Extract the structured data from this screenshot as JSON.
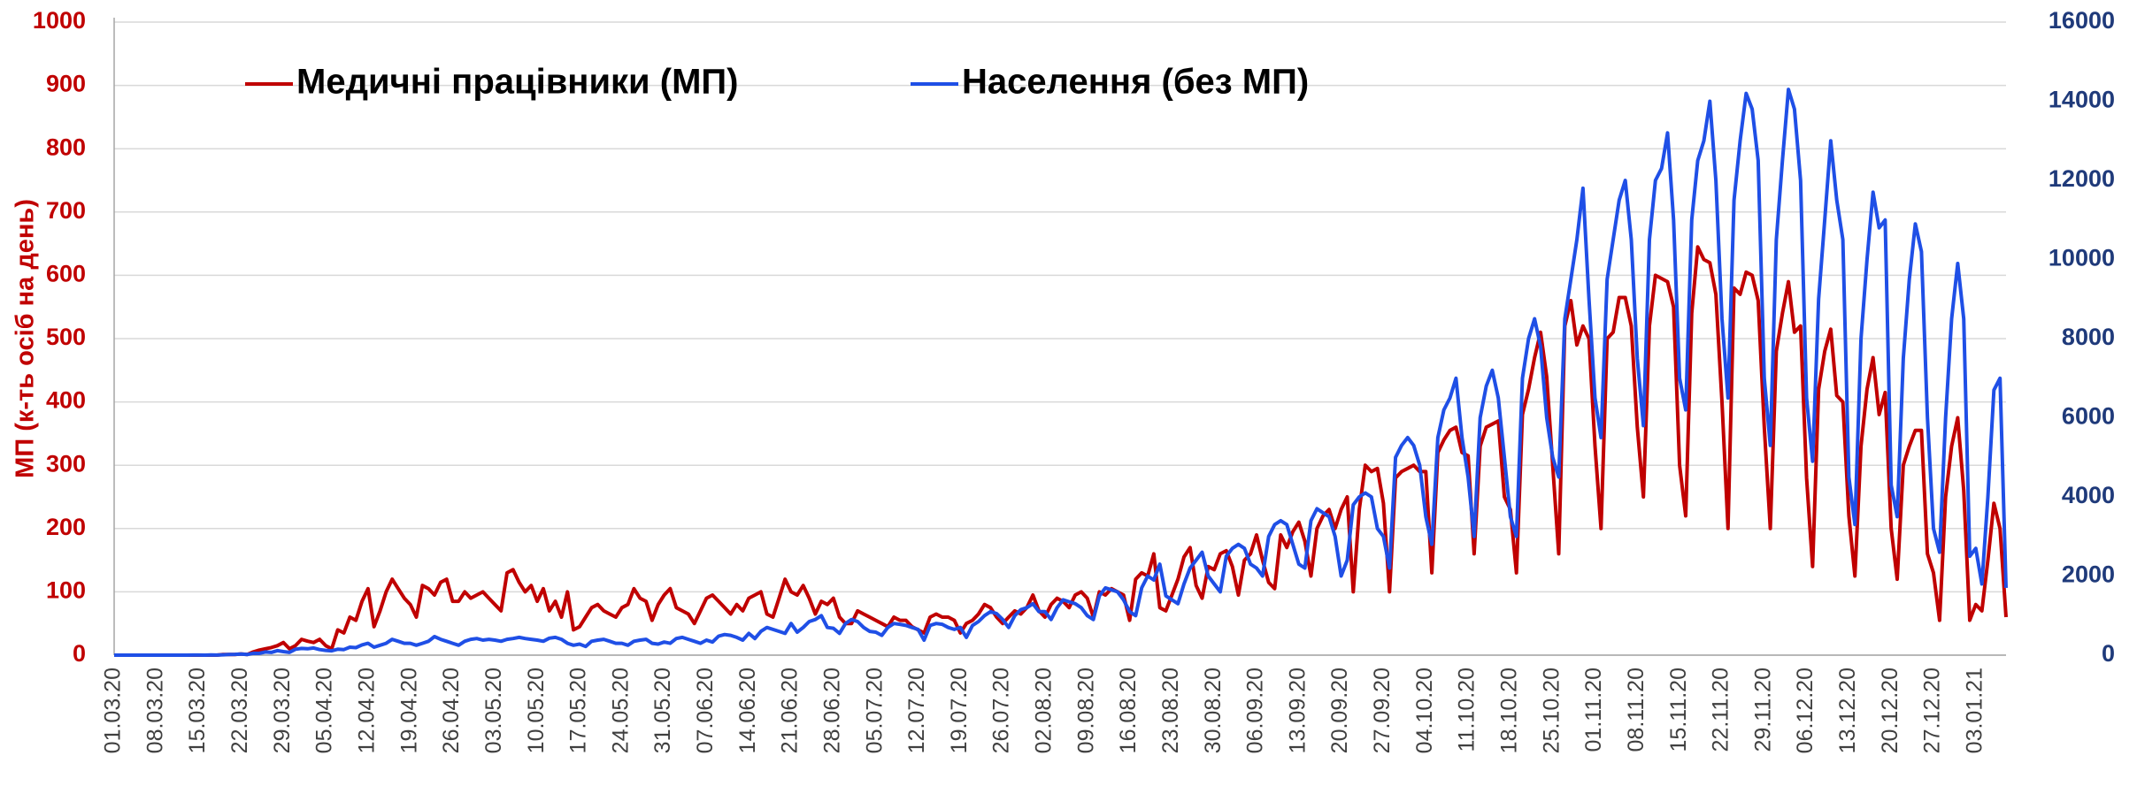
{
  "chart_data": {
    "type": "line",
    "y_label": "МП (к-ть осіб на день)",
    "categories": [
      "01.03.20",
      null,
      null,
      null,
      null,
      null,
      null,
      "08.03.20",
      null,
      null,
      null,
      null,
      null,
      null,
      "15.03.20",
      null,
      null,
      null,
      null,
      null,
      null,
      "22.03.20",
      null,
      null,
      null,
      null,
      null,
      null,
      "29.03.20",
      null,
      null,
      null,
      null,
      null,
      null,
      "05.04.20",
      null,
      null,
      null,
      null,
      null,
      null,
      "12.04.20",
      null,
      null,
      null,
      null,
      null,
      null,
      "19.04.20",
      null,
      null,
      null,
      null,
      null,
      null,
      "26.04.20",
      null,
      null,
      null,
      null,
      null,
      null,
      "03.05.20",
      null,
      null,
      null,
      null,
      null,
      null,
      "10.05.20",
      null,
      null,
      null,
      null,
      null,
      null,
      "17.05.20",
      null,
      null,
      null,
      null,
      null,
      null,
      "24.05.20",
      null,
      null,
      null,
      null,
      null,
      null,
      "31.05.20",
      null,
      null,
      null,
      null,
      null,
      null,
      "07.06.20",
      null,
      null,
      null,
      null,
      null,
      null,
      "14.06.20",
      null,
      null,
      null,
      null,
      null,
      null,
      "21.06.20",
      null,
      null,
      null,
      null,
      null,
      null,
      "28.06.20",
      null,
      null,
      null,
      null,
      null,
      null,
      "05.07.20",
      null,
      null,
      null,
      null,
      null,
      null,
      "12.07.20",
      null,
      null,
      null,
      null,
      null,
      null,
      "19.07.20",
      null,
      null,
      null,
      null,
      null,
      null,
      "26.07.20",
      null,
      null,
      null,
      null,
      null,
      null,
      "02.08.20",
      null,
      null,
      null,
      null,
      null,
      null,
      "09.08.20",
      null,
      null,
      null,
      null,
      null,
      null,
      "16.08.20",
      null,
      null,
      null,
      null,
      null,
      null,
      "23.08.20",
      null,
      null,
      null,
      null,
      null,
      null,
      "30.08.20",
      null,
      null,
      null,
      null,
      null,
      null,
      "06.09.20",
      null,
      null,
      null,
      null,
      null,
      null,
      "13.09.20",
      null,
      null,
      null,
      null,
      null,
      null,
      "20.09.20",
      null,
      null,
      null,
      null,
      null,
      null,
      "27.09.20",
      null,
      null,
      null,
      null,
      null,
      null,
      "04.10.20",
      null,
      null,
      null,
      null,
      null,
      null,
      "11.10.20",
      null,
      null,
      null,
      null,
      null,
      null,
      "18.10.20",
      null,
      null,
      null,
      null,
      null,
      null,
      "25.10.20",
      null,
      null,
      null,
      null,
      null,
      null,
      "01.11.20",
      null,
      null,
      null,
      null,
      null,
      null,
      "08.11.20",
      null,
      null,
      null,
      null,
      null,
      null,
      "15.11.20",
      null,
      null,
      null,
      null,
      null,
      null,
      "22.11.20",
      null,
      null,
      null,
      null,
      null,
      null,
      "29.11.20",
      null,
      null,
      null,
      null,
      null,
      null,
      "06.12.20",
      null,
      null,
      null,
      null,
      null,
      null,
      "13.12.20",
      null,
      null,
      null,
      null,
      null,
      null,
      "20.12.20",
      null,
      null,
      null,
      null,
      null,
      null,
      "27.12.20",
      null,
      null,
      null,
      null,
      null,
      null,
      "03.01.21",
      null,
      null,
      null,
      null,
      null
    ],
    "series": [
      {
        "name": "Медичні працівники (МП)",
        "color": "#c00000",
        "axis": "y",
        "values": [
          0,
          0,
          0,
          0,
          0,
          0,
          0,
          0,
          0,
          0,
          0,
          0,
          0,
          0,
          0,
          0,
          0,
          0,
          1,
          1,
          1,
          2,
          1,
          5,
          8,
          10,
          12,
          15,
          20,
          10,
          15,
          25,
          22,
          20,
          25,
          15,
          10,
          40,
          35,
          60,
          55,
          85,
          105,
          45,
          70,
          100,
          120,
          105,
          90,
          80,
          60,
          110,
          105,
          95,
          115,
          120,
          85,
          85,
          100,
          90,
          95,
          100,
          90,
          80,
          70,
          130,
          135,
          115,
          100,
          110,
          85,
          105,
          70,
          85,
          60,
          100,
          40,
          45,
          60,
          75,
          80,
          70,
          65,
          60,
          75,
          80,
          105,
          90,
          85,
          55,
          80,
          95,
          105,
          75,
          70,
          65,
          50,
          70,
          90,
          95,
          85,
          75,
          65,
          80,
          70,
          90,
          95,
          100,
          65,
          60,
          90,
          120,
          100,
          95,
          110,
          90,
          65,
          85,
          80,
          90,
          60,
          50,
          50,
          70,
          65,
          60,
          55,
          50,
          45,
          60,
          55,
          55,
          45,
          40,
          35,
          60,
          65,
          60,
          60,
          55,
          35,
          50,
          55,
          65,
          80,
          75,
          60,
          50,
          60,
          70,
          65,
          75,
          95,
          70,
          60,
          80,
          90,
          85,
          75,
          95,
          100,
          90,
          60,
          100,
          95,
          105,
          100,
          95,
          55,
          120,
          130,
          125,
          160,
          75,
          70,
          95,
          120,
          155,
          170,
          110,
          90,
          140,
          135,
          160,
          165,
          140,
          95,
          150,
          160,
          190,
          150,
          115,
          105,
          190,
          170,
          195,
          210,
          180,
          125,
          200,
          220,
          230,
          200,
          230,
          250,
          100,
          230,
          300,
          290,
          295,
          240,
          100,
          280,
          290,
          295,
          300,
          290,
          290,
          130,
          320,
          340,
          355,
          360,
          320,
          315,
          160,
          330,
          360,
          365,
          370,
          250,
          230,
          130,
          380,
          420,
          470,
          510,
          440,
          300,
          160,
          520,
          560,
          490,
          520,
          500,
          330,
          200,
          500,
          510,
          565,
          565,
          520,
          360,
          250,
          520,
          600,
          595,
          590,
          550,
          300,
          220,
          540,
          645,
          625,
          620,
          570,
          400,
          200,
          580,
          570,
          605,
          600,
          560,
          360,
          200,
          480,
          540,
          590,
          510,
          520,
          280,
          140,
          420,
          480,
          515,
          410,
          400,
          220,
          125,
          330,
          420,
          470,
          380,
          415,
          200,
          120,
          300,
          330,
          355,
          355,
          160,
          130,
          55,
          250,
          330,
          375,
          260,
          55,
          80,
          70,
          150,
          240,
          200,
          60
        ]
      },
      {
        "name": "Населення (без МП)",
        "color": "#1f4fe6",
        "axis": "y2",
        "values": [
          0,
          0,
          1,
          0,
          0,
          0,
          0,
          0,
          0,
          1,
          1,
          0,
          1,
          2,
          3,
          1,
          5,
          2,
          10,
          16,
          20,
          29,
          16,
          47,
          45,
          80,
          70,
          115,
          90,
          70,
          150,
          170,
          160,
          180,
          140,
          120,
          110,
          150,
          140,
          200,
          190,
          260,
          300,
          200,
          250,
          300,
          400,
          350,
          300,
          300,
          250,
          300,
          350,
          470,
          400,
          350,
          300,
          250,
          350,
          400,
          420,
          380,
          400,
          380,
          350,
          400,
          420,
          450,
          420,
          400,
          380,
          350,
          430,
          450,
          400,
          300,
          250,
          280,
          220,
          350,
          380,
          400,
          350,
          300,
          300,
          250,
          350,
          380,
          400,
          300,
          280,
          330,
          300,
          420,
          450,
          400,
          350,
          300,
          380,
          330,
          480,
          520,
          500,
          450,
          380,
          550,
          420,
          600,
          700,
          650,
          600,
          550,
          800,
          580,
          700,
          850,
          900,
          1000,
          700,
          680,
          550,
          800,
          900,
          850,
          700,
          600,
          580,
          500,
          700,
          800,
          780,
          750,
          700,
          650,
          380,
          750,
          800,
          780,
          700,
          650,
          700,
          450,
          750,
          850,
          1000,
          1100,
          1050,
          900,
          700,
          1000,
          1150,
          1200,
          1300,
          1100,
          1100,
          900,
          1200,
          1400,
          1350,
          1300,
          1200,
          1000,
          900,
          1500,
          1700,
          1650,
          1600,
          1400,
          1100,
          1000,
          1700,
          2000,
          1900,
          2300,
          1500,
          1400,
          1300,
          1800,
          2200,
          2400,
          2600,
          2000,
          1800,
          1600,
          2500,
          2700,
          2800,
          2700,
          2300,
          2200,
          2000,
          3000,
          3300,
          3400,
          3300,
          2800,
          2300,
          2200,
          3400,
          3700,
          3600,
          3500,
          3000,
          2000,
          2400,
          3800,
          4000,
          4100,
          4000,
          3200,
          3000,
          2200,
          5000,
          5300,
          5500,
          5300,
          4800,
          3500,
          2800,
          5500,
          6200,
          6500,
          7000,
          5500,
          4500,
          3000,
          6000,
          6800,
          7200,
          6500,
          5000,
          3500,
          3000,
          7000,
          8000,
          8500,
          7800,
          6000,
          5000,
          4500,
          8500,
          9500,
          10500,
          11800,
          9000,
          6500,
          5500,
          9500,
          10500,
          11500,
          12000,
          10500,
          7500,
          5800,
          10500,
          12000,
          12300,
          13200,
          11000,
          7000,
          6200,
          11000,
          12500,
          13000,
          14000,
          12000,
          8500,
          6500,
          11500,
          13000,
          14200,
          13800,
          12500,
          7000,
          5300,
          10500,
          12500,
          14300,
          13800,
          12000,
          6500,
          4900,
          9000,
          11000,
          13000,
          11500,
          10500,
          4500,
          3300,
          8000,
          10000,
          11700,
          10800,
          11000,
          4300,
          3500,
          7500,
          9500,
          10900,
          10200,
          6000,
          3200,
          2600,
          6000,
          8500,
          9900,
          8500,
          2500,
          2700,
          1800,
          4000,
          6700,
          7000,
          1700
        ]
      }
    ],
    "ylim": [
      0,
      1000
    ],
    "yticks": [
      0,
      100,
      200,
      300,
      400,
      500,
      600,
      700,
      800,
      900,
      1000
    ],
    "y2lim": [
      0,
      16000
    ],
    "y2ticks": [
      0,
      2000,
      4000,
      6000,
      8000,
      10000,
      12000,
      14000,
      16000
    ],
    "grid": true,
    "legend": "top"
  }
}
